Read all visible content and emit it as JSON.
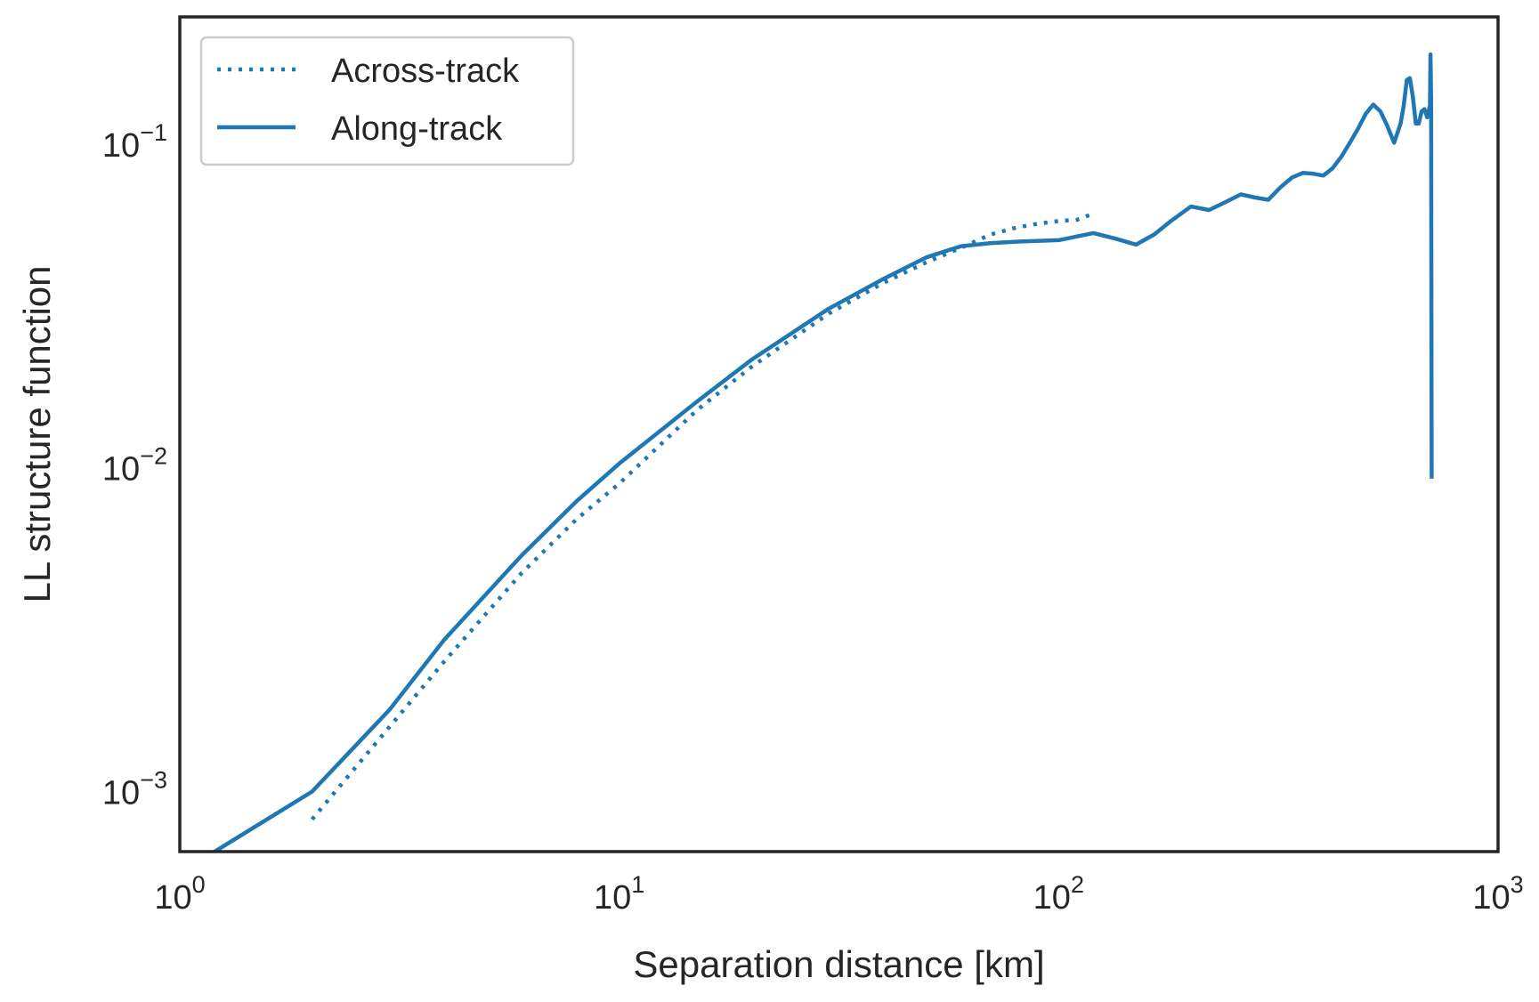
{
  "chart_data": {
    "type": "line",
    "xlabel": "Separation distance [km]",
    "ylabel": "LL structure function",
    "xscale": "log",
    "yscale": "log",
    "xlim": [
      1,
      1000
    ],
    "ylim": [
      0.00062,
      0.235
    ],
    "grid": false,
    "legend_position": "top-left",
    "x_ticks": [
      {
        "value": 1,
        "base": "10",
        "exp": "0"
      },
      {
        "value": 10,
        "base": "10",
        "exp": "1"
      },
      {
        "value": 100,
        "base": "10",
        "exp": "2"
      },
      {
        "value": 1000,
        "base": "10",
        "exp": "3"
      }
    ],
    "y_ticks": [
      {
        "value": 0.001,
        "base": "10",
        "exp": "−3"
      },
      {
        "value": 0.01,
        "base": "10",
        "exp": "−2"
      },
      {
        "value": 0.1,
        "base": "10",
        "exp": "−1"
      }
    ],
    "series": [
      {
        "name": "Across-track",
        "style": "dotted",
        "color": "#1f77b4",
        "x": [
          2,
          4,
          6,
          8,
          10,
          15,
          20,
          30,
          40,
          50,
          60,
          70,
          80,
          90,
          100,
          110,
          118
        ],
        "y": [
          0.00078,
          0.0024,
          0.0045,
          0.0066,
          0.0085,
          0.0143,
          0.0195,
          0.0285,
          0.0355,
          0.041,
          0.0455,
          0.05,
          0.0525,
          0.054,
          0.055,
          0.0555,
          0.0575
        ]
      },
      {
        "name": "Along-track",
        "style": "solid",
        "color": "#1f77b4",
        "x": [
          1.2,
          2,
          3,
          4,
          6,
          8,
          10,
          15,
          20,
          30,
          40,
          50,
          60,
          70,
          80,
          100,
          120,
          135,
          150,
          165,
          180,
          200,
          220,
          240,
          260,
          280,
          300,
          320,
          340,
          360,
          380,
          400,
          420,
          440,
          460,
          480,
          500,
          520,
          540,
          560,
          580,
          600,
          610,
          620,
          630,
          640,
          650,
          660,
          670,
          680,
          690,
          700,
          702,
          704,
          706
        ],
        "y": [
          0.00062,
          0.00095,
          0.0017,
          0.0028,
          0.0051,
          0.0075,
          0.0098,
          0.0152,
          0.0205,
          0.0295,
          0.0365,
          0.0425,
          0.046,
          0.047,
          0.0475,
          0.048,
          0.0505,
          0.0485,
          0.0465,
          0.05,
          0.055,
          0.061,
          0.0595,
          0.063,
          0.0665,
          0.065,
          0.064,
          0.07,
          0.075,
          0.0775,
          0.077,
          0.076,
          0.08,
          0.087,
          0.096,
          0.106,
          0.118,
          0.126,
          0.12,
          0.108,
          0.096,
          0.11,
          0.125,
          0.15,
          0.152,
          0.133,
          0.11,
          0.11,
          0.12,
          0.122,
          0.115,
          0.125,
          0.18,
          0.13,
          0.0088
        ]
      }
    ]
  }
}
